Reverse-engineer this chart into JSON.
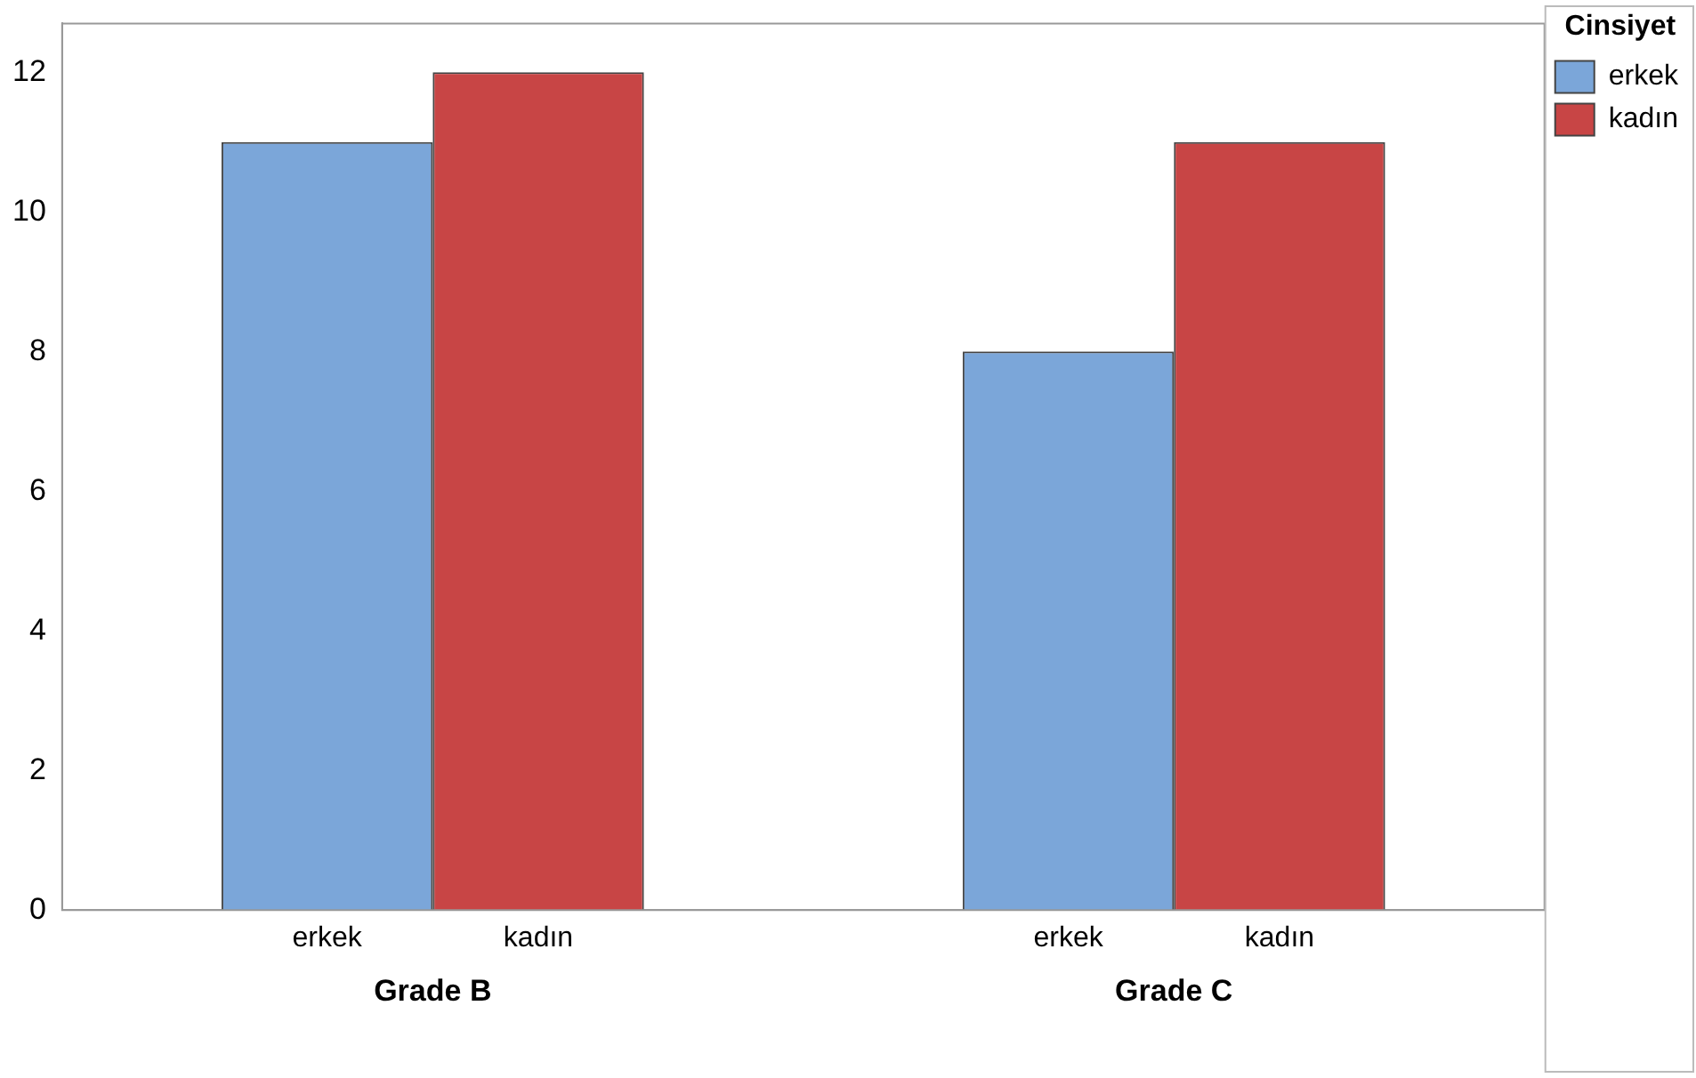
{
  "chart_data": {
    "type": "bar",
    "categories": [
      "Grade B",
      "Grade C"
    ],
    "series": [
      {
        "name": "erkek",
        "color": "#7ba6d9",
        "values": [
          11,
          8
        ]
      },
      {
        "name": "kadın",
        "color": "#c84545",
        "values": [
          12,
          11
        ]
      }
    ],
    "legend_title": "Cinsiyet",
    "legend": "top right",
    "ylim": [
      0,
      12.7
    ],
    "yticks": [
      0,
      2,
      4,
      6,
      8,
      10,
      12
    ],
    "grid": false
  }
}
